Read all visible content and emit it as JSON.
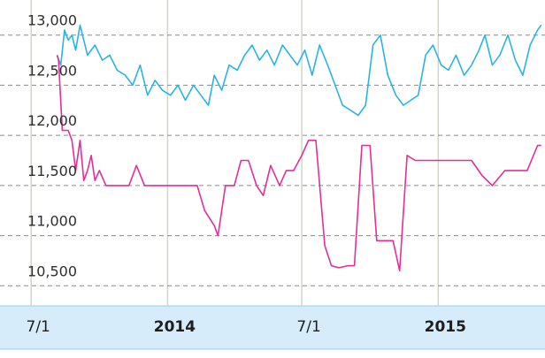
{
  "chart_data": {
    "type": "line",
    "title": "",
    "xlabel": "",
    "ylabel": "",
    "y_ticks": [
      "13,000",
      "12,500",
      "12,000",
      "11,500",
      "11,000",
      "10,500"
    ],
    "y_tick_values": [
      13000,
      12500,
      12000,
      11500,
      11000,
      10500
    ],
    "ylim": [
      10300,
      13350
    ],
    "xlim": [
      "2013-05-20",
      "2015-05-25"
    ],
    "x_ticks": [
      {
        "label": "7/1",
        "date": "2013-07-01",
        "bold": false
      },
      {
        "label": "2014",
        "date": "2014-01-01",
        "bold": true
      },
      {
        "label": "7/1",
        "date": "2014-07-01",
        "bold": false
      },
      {
        "label": "2015",
        "date": "2015-01-01",
        "bold": true
      }
    ],
    "grid": true,
    "axis_band_color": "#d6ecfa",
    "series": [
      {
        "color": "#2bb4e3",
        "x": [
          "2013-08-05",
          "2013-08-10",
          "2013-08-15",
          "2013-08-20",
          "2013-08-25",
          "2013-08-30",
          "2013-09-05",
          "2013-09-15",
          "2013-09-25",
          "2013-10-05",
          "2013-10-15",
          "2013-10-25",
          "2013-11-05",
          "2013-11-15",
          "2013-11-25",
          "2013-12-05",
          "2013-12-15",
          "2013-12-25",
          "2014-01-05",
          "2014-01-15",
          "2014-01-25",
          "2014-02-05",
          "2014-02-15",
          "2014-02-25",
          "2014-03-05",
          "2014-03-15",
          "2014-03-25",
          "2014-04-05",
          "2014-04-15",
          "2014-04-25",
          "2014-05-05",
          "2014-05-15",
          "2014-05-25",
          "2014-06-05",
          "2014-06-15",
          "2014-06-25",
          "2014-07-05",
          "2014-07-15",
          "2014-07-25",
          "2014-08-05",
          "2014-08-15",
          "2014-08-25",
          "2014-09-05",
          "2014-09-15",
          "2014-09-25",
          "2014-10-05",
          "2014-10-15",
          "2014-10-25",
          "2014-11-05",
          "2014-11-15",
          "2014-11-25",
          "2014-12-05",
          "2014-12-15",
          "2014-12-25",
          "2015-01-05",
          "2015-01-15",
          "2015-01-25",
          "2015-02-05",
          "2015-02-15",
          "2015-02-25",
          "2015-03-05",
          "2015-03-15",
          "2015-03-25",
          "2015-04-05",
          "2015-04-15",
          "2015-04-25",
          "2015-05-05",
          "2015-05-15",
          "2015-05-20"
        ],
        "values": [
          12800,
          12700,
          13050,
          12950,
          13000,
          12850,
          13100,
          12800,
          12900,
          12750,
          12800,
          12650,
          12600,
          12500,
          12700,
          12400,
          12550,
          12450,
          12400,
          12500,
          12350,
          12500,
          12400,
          12300,
          12600,
          12450,
          12700,
          12650,
          12800,
          12900,
          12750,
          12850,
          12700,
          12900,
          12800,
          12700,
          12850,
          12600,
          12900,
          12700,
          12500,
          12300,
          12250,
          12200,
          12300,
          12900,
          13000,
          12600,
          12400,
          12300,
          12350,
          12400,
          12800,
          12900,
          12700,
          12650,
          12800,
          12600,
          12700,
          12850,
          13000,
          12700,
          12800,
          13000,
          12750,
          12600,
          12900,
          13050,
          13100
        ]
      },
      {
        "color": "#e0309a",
        "x": [
          "2013-08-05",
          "2013-08-07",
          "2013-08-12",
          "2013-08-20",
          "2013-08-25",
          "2013-08-30",
          "2013-09-05",
          "2013-09-10",
          "2013-09-15",
          "2013-09-20",
          "2013-09-25",
          "2013-10-01",
          "2013-10-10",
          "2013-10-20",
          "2013-10-30",
          "2013-11-10",
          "2013-11-20",
          "2013-12-01",
          "2013-12-15",
          "2014-01-01",
          "2014-01-15",
          "2014-02-01",
          "2014-02-10",
          "2014-02-20",
          "2014-03-05",
          "2014-03-10",
          "2014-03-20",
          "2014-04-01",
          "2014-04-10",
          "2014-04-20",
          "2014-05-01",
          "2014-05-10",
          "2014-05-20",
          "2014-06-01",
          "2014-06-10",
          "2014-06-20",
          "2014-07-01",
          "2014-07-10",
          "2014-07-20",
          "2014-08-01",
          "2014-08-10",
          "2014-08-20",
          "2014-09-01",
          "2014-09-10",
          "2014-09-20",
          "2014-10-01",
          "2014-10-10",
          "2014-10-20",
          "2014-11-01",
          "2014-11-10",
          "2014-11-20",
          "2014-12-01",
          "2014-12-15",
          "2015-01-01",
          "2015-01-15",
          "2015-02-01",
          "2015-02-15",
          "2015-03-01",
          "2015-03-15",
          "2015-04-01",
          "2015-04-15",
          "2015-05-01",
          "2015-05-15",
          "2015-05-20"
        ],
        "values": [
          12800,
          12750,
          12050,
          12050,
          11950,
          11650,
          11950,
          11550,
          11650,
          11800,
          11550,
          11650,
          11500,
          11500,
          11500,
          11500,
          11700,
          11500,
          11500,
          11500,
          11500,
          11500,
          11500,
          11250,
          11100,
          11000,
          11500,
          11500,
          11750,
          11750,
          11500,
          11400,
          11700,
          11500,
          11650,
          11650,
          11800,
          11950,
          11950,
          10900,
          10700,
          10680,
          10700,
          10700,
          11900,
          11900,
          10950,
          10950,
          10950,
          10650,
          11800,
          11750,
          11750,
          11750,
          11750,
          11750,
          11750,
          11600,
          11500,
          11650,
          11650,
          11650,
          11900,
          11900
        ]
      }
    ]
  }
}
